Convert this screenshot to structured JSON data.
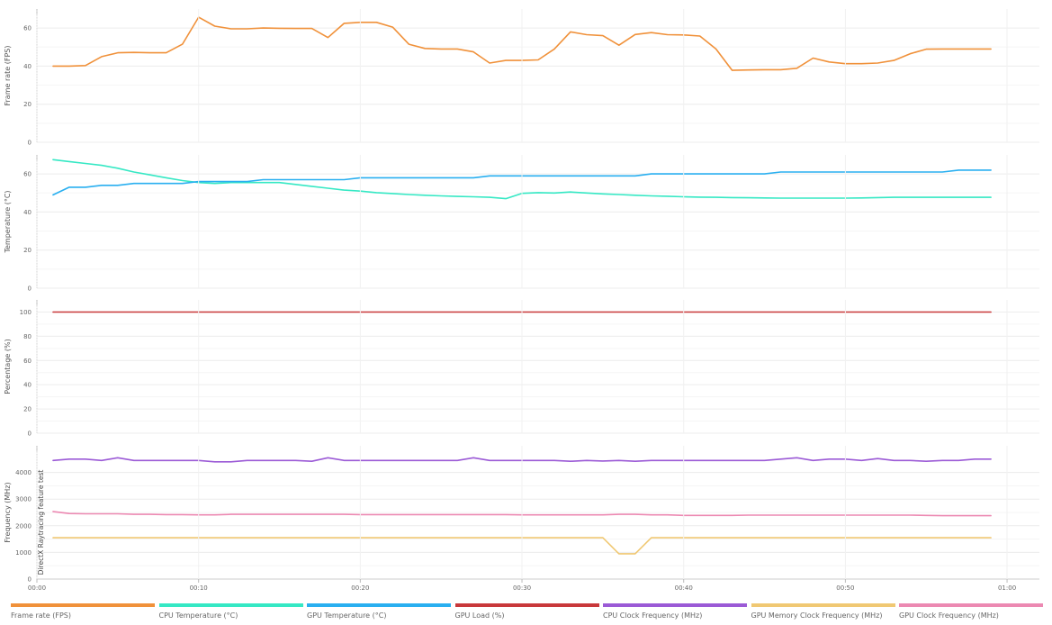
{
  "chart_data": {
    "type": "line",
    "x_unit": "time (mm:ss)",
    "x": [
      "00:01",
      "00:02",
      "00:03",
      "00:04",
      "00:05",
      "00:06",
      "00:07",
      "00:08",
      "00:09",
      "00:10",
      "00:11",
      "00:12",
      "00:13",
      "00:14",
      "00:15",
      "00:16",
      "00:17",
      "00:18",
      "00:19",
      "00:20",
      "00:21",
      "00:22",
      "00:23",
      "00:24",
      "00:25",
      "00:26",
      "00:27",
      "00:28",
      "00:29",
      "00:30",
      "00:31",
      "00:32",
      "00:33",
      "00:34",
      "00:35",
      "00:36",
      "00:37",
      "00:38",
      "00:39",
      "00:40",
      "00:41",
      "00:42",
      "00:43",
      "00:44",
      "00:45",
      "00:46",
      "00:47",
      "00:48",
      "00:49",
      "00:50",
      "00:51",
      "00:52",
      "00:53",
      "00:54",
      "00:55",
      "00:56",
      "00:57",
      "00:58",
      "00:59"
    ],
    "xaxis": {
      "range": [
        "00:00",
        "01:02"
      ],
      "ticks": [
        "00:00",
        "00:10",
        "00:20",
        "00:30",
        "00:40",
        "00:50",
        "01:00"
      ]
    },
    "grid": true,
    "legend_position": "bottom",
    "annotation": "DirectX Raytracing feature test",
    "panels": [
      {
        "ylabel": "Frame rate (FPS)",
        "ylim": [
          0,
          70
        ],
        "yticks": [
          0,
          20,
          40,
          60
        ],
        "series": [
          {
            "name": "Frame rate (FPS)",
            "color": "#f0913a",
            "values": [
              40,
              40,
              40.3,
              45,
              47,
              47.2,
              47,
              47,
              51.5,
              65.7,
              61,
              59.6,
              59.6,
              60,
              59.9,
              59.8,
              59.8,
              55,
              62.5,
              63,
              63,
              60.5,
              51.5,
              49.3,
              49,
              49,
              47.5,
              41.6,
              43,
              43,
              43.3,
              49,
              58,
              56.5,
              56,
              51,
              56.6,
              57.6,
              56.5,
              56.4,
              55.8,
              49,
              37.8,
              38,
              38.1,
              38.1,
              38.9,
              44.2,
              42.2,
              41.3,
              41.3,
              41.6,
              43,
              46.5,
              48.9,
              49,
              49,
              49,
              49
            ]
          }
        ]
      },
      {
        "ylabel": "Temperature (°C)",
        "ylim": [
          0,
          70
        ],
        "yticks": [
          0,
          20,
          40,
          60
        ],
        "series": [
          {
            "name": "CPU Temperature (°C)",
            "color": "#35e8c4",
            "values": [
              67.5,
              66.5,
              65.5,
              64.5,
              63,
              61,
              59.5,
              58,
              56.5,
              55.5,
              55,
              55.5,
              55.5,
              55.5,
              55.5,
              54.5,
              53.5,
              52.5,
              51.5,
              51,
              50.2,
              49.7,
              49.2,
              48.8,
              48.5,
              48.2,
              48,
              47.7,
              47,
              49.8,
              50.2,
              50,
              50.5,
              50,
              49.5,
              49.2,
              48.8,
              48.5,
              48.3,
              48,
              47.8,
              47.7,
              47.6,
              47.5,
              47.4,
              47.3,
              47.3,
              47.3,
              47.3,
              47.3,
              47.4,
              47.6,
              47.7,
              47.7,
              47.7,
              47.7,
              47.7,
              47.7,
              47.7
            ]
          },
          {
            "name": "GPU Temperature (°C)",
            "color": "#29aff0",
            "values": [
              49,
              53,
              53,
              54,
              54,
              55,
              55,
              55,
              55,
              56,
              56,
              56,
              56,
              57,
              57,
              57,
              57,
              57,
              57,
              58,
              58,
              58,
              58,
              58,
              58,
              58,
              58,
              59,
              59,
              59,
              59,
              59,
              59,
              59,
              59,
              59,
              59,
              60,
              60,
              60,
              60,
              60,
              60,
              60,
              60,
              61,
              61,
              61,
              61,
              61,
              61,
              61,
              61,
              61,
              61,
              61,
              62,
              62,
              62
            ]
          }
        ]
      },
      {
        "ylabel": "Percentage (%)",
        "ylim": [
          0,
          110
        ],
        "yticks": [
          0,
          20,
          40,
          60,
          80,
          100
        ],
        "series": [
          {
            "name": "GPU Load (%)",
            "color": "#c8383a",
            "values": [
              100,
              100,
              100,
              100,
              100,
              100,
              100,
              100,
              100,
              100,
              100,
              100,
              100,
              100,
              100,
              100,
              100,
              100,
              100,
              100,
              100,
              100,
              100,
              100,
              100,
              100,
              100,
              100,
              100,
              100,
              100,
              100,
              100,
              100,
              100,
              100,
              100,
              100,
              100,
              100,
              100,
              100,
              100,
              100,
              100,
              100,
              100,
              100,
              100,
              100,
              100,
              100,
              100,
              100,
              100,
              100,
              100,
              100,
              100
            ]
          }
        ]
      },
      {
        "ylabel": "Frequency (MHz)",
        "ylim": [
          0,
          5000
        ],
        "yticks": [
          0,
          1000,
          2000,
          3000,
          4000
        ],
        "series": [
          {
            "name": "CPU Clock Frequency (MHz)",
            "color": "#9b5ad6",
            "values": [
              4450,
              4500,
              4500,
              4450,
              4550,
              4450,
              4450,
              4450,
              4450,
              4450,
              4400,
              4400,
              4450,
              4450,
              4450,
              4450,
              4420,
              4550,
              4450,
              4450,
              4450,
              4450,
              4450,
              4450,
              4450,
              4450,
              4550,
              4450,
              4450,
              4450,
              4450,
              4450,
              4420,
              4450,
              4430,
              4450,
              4420,
              4450,
              4450,
              4450,
              4450,
              4450,
              4450,
              4450,
              4450,
              4500,
              4550,
              4450,
              4500,
              4500,
              4450,
              4520,
              4450,
              4450,
              4420,
              4450,
              4450,
              4500,
              4500
            ]
          },
          {
            "name": "GPU Memory Clock Frequency (MHz)",
            "color": "#f0c873",
            "values": [
              1550,
              1550,
              1550,
              1550,
              1550,
              1550,
              1550,
              1550,
              1550,
              1550,
              1550,
              1550,
              1550,
              1550,
              1550,
              1550,
              1550,
              1550,
              1550,
              1550,
              1550,
              1550,
              1550,
              1550,
              1550,
              1550,
              1550,
              1550,
              1550,
              1550,
              1550,
              1550,
              1550,
              1550,
              1550,
              950,
              950,
              1550,
              1550,
              1550,
              1550,
              1550,
              1550,
              1550,
              1550,
              1550,
              1550,
              1550,
              1550,
              1550,
              1550,
              1550,
              1550,
              1550,
              1550,
              1550,
              1550,
              1550,
              1550
            ]
          },
          {
            "name": "GPU Clock Frequency (MHz)",
            "color": "#ec89b2",
            "values": [
              2530,
              2460,
              2450,
              2450,
              2450,
              2430,
              2430,
              2420,
              2420,
              2410,
              2410,
              2430,
              2430,
              2430,
              2430,
              2430,
              2430,
              2430,
              2430,
              2420,
              2420,
              2420,
              2420,
              2420,
              2420,
              2420,
              2420,
              2420,
              2420,
              2410,
              2410,
              2410,
              2410,
              2410,
              2410,
              2430,
              2430,
              2410,
              2410,
              2390,
              2390,
              2390,
              2390,
              2400,
              2400,
              2400,
              2400,
              2400,
              2400,
              2400,
              2400,
              2400,
              2400,
              2400,
              2390,
              2380,
              2380,
              2380,
              2380
            ]
          }
        ]
      }
    ]
  }
}
